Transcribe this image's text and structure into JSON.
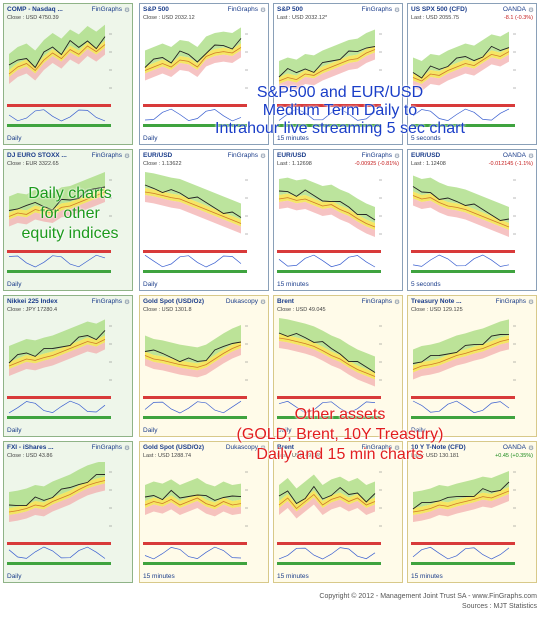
{
  "panels": [
    {
      "name": "COMP - Nasdaq ...",
      "provider": "FinGraphs",
      "quote": "Close : USD 4750.39",
      "change": "",
      "dir": "",
      "footer": "Daily",
      "bg": "green",
      "trend": "up"
    },
    {
      "name": "S&P 500",
      "provider": "FinGraphs",
      "quote": "Close : USD 2032.12",
      "change": "",
      "dir": "",
      "footer": "Daily",
      "bg": "blue",
      "trend": "up"
    },
    {
      "name": "S&P 500",
      "provider": "FinGraphs",
      "quote": "Last : USD 2032.12*",
      "change": "",
      "dir": "",
      "footer": "15 minutes",
      "bg": "blue",
      "trend": "up"
    },
    {
      "name": "US SPX 500 (CFD)",
      "provider": "OANDA",
      "quote": "Last : USD 2055.75",
      "change": "-8.1 (-0.3%)",
      "dir": "down",
      "footer": "5 seconds",
      "bg": "blue",
      "trend": "up"
    },
    {
      "name": "DJ EURO STOXX ...",
      "provider": "FinGraphs",
      "quote": "Close : EUR 3322.65",
      "change": "",
      "dir": "",
      "footer": "Daily",
      "bg": "green",
      "trend": "up"
    },
    {
      "name": "EUR/USD",
      "provider": "FinGraphs",
      "quote": "Close : 1.13622",
      "change": "",
      "dir": "",
      "footer": "Daily",
      "bg": "blue",
      "trend": "down"
    },
    {
      "name": "EUR/USD",
      "provider": "FinGraphs",
      "quote": "Last : 1.12698",
      "change": "-0.00925 (-0.81%)",
      "dir": "down",
      "footer": "15 minutes",
      "bg": "blue",
      "trend": "down"
    },
    {
      "name": "EUR/USD",
      "provider": "OANDA",
      "quote": "Last : 1.12408",
      "change": "-0.012145 (-1.1%)",
      "dir": "down",
      "footer": "5 seconds",
      "bg": "blue",
      "trend": "down"
    },
    {
      "name": "Nikkei 225 Index",
      "provider": "FinGraphs",
      "quote": "Close : JPY 17280.4",
      "change": "",
      "dir": "",
      "footer": "Daily",
      "bg": "green",
      "trend": "up"
    },
    {
      "name": "Gold Spot (USD/Oz)",
      "provider": "Dukascopy",
      "quote": "Close : USD 1301.8",
      "change": "",
      "dir": "",
      "footer": "Daily",
      "bg": "yellow",
      "trend": "up"
    },
    {
      "name": "Brent",
      "provider": "FinGraphs",
      "quote": "Close : USD 49.045",
      "change": "",
      "dir": "",
      "footer": "Daily",
      "bg": "yellow",
      "trend": "down"
    },
    {
      "name": "Treasury Note ...",
      "provider": "FinGraphs",
      "quote": "Close : USD 129.125",
      "change": "",
      "dir": "",
      "footer": "Daily",
      "bg": "yellow",
      "trend": "up"
    },
    {
      "name": "FXI - iShares ...",
      "provider": "FinGraphs",
      "quote": "Close : USD 43.86",
      "change": "",
      "dir": "",
      "footer": "Daily",
      "bg": "green",
      "trend": "up"
    },
    {
      "name": "Gold Spot (USD/Oz)",
      "provider": "Dukascopy",
      "quote": "Last : USD 1288.74",
      "change": "",
      "dir": "",
      "footer": "15 minutes",
      "bg": "yellow",
      "trend": "flat"
    },
    {
      "name": "Brent",
      "provider": "FinGraphs",
      "quote": "Last : USD 49.045",
      "change": "",
      "dir": "",
      "footer": "15 minutes",
      "bg": "yellow",
      "trend": "flat"
    },
    {
      "name": "10 Y T-Note (CFD)",
      "provider": "OANDA",
      "quote": "Last : USD 130.181",
      "change": "+0.45 (+0.35%)",
      "dir": "up",
      "footer": "15 minutes",
      "bg": "yellow",
      "trend": "up"
    }
  ],
  "overlays": {
    "sp_lines": [
      "S&P500 and EUR/USD",
      "Medium Term Daily to",
      "Intrahour live streaming 5 sec chart"
    ],
    "daily_lines": [
      "Daily charts",
      "for other",
      "equity indices"
    ],
    "assets_lines": [
      "Other assets",
      "(GOLD, Brent, 10Y Treasury)",
      "Daily and 15 min charts"
    ]
  },
  "copyright": {
    "line1": "Copyright © 2012 - Management Joint Trust SA - www.FinGraphs.com",
    "line2": "Sources : MJT Statistics"
  },
  "colors": {
    "band_upper": "#a6db7c",
    "band_mid": "#f3e24a",
    "band_lower": "#f2a9a9",
    "price": "#222222",
    "overbought": "#d83a3a",
    "oversold": "#3fa33f",
    "accent_blue": "#1a3ec8",
    "accent_green": "#1c9a1c",
    "accent_red": "#e21e1e"
  },
  "chart_data": [
    {
      "type": "line",
      "title": "COMP - Nasdaq ...",
      "series": [
        {
          "values": [
            0.4,
            0.5,
            0.55,
            0.45,
            0.6,
            0.7,
            0.62,
            0.75,
            0.68,
            0.8,
            0.72,
            0.82
          ]
        }
      ]
    },
    {
      "type": "line",
      "title": "S&P 500",
      "series": [
        {
          "values": [
            0.45,
            0.5,
            0.55,
            0.5,
            0.6,
            0.58,
            0.5,
            0.65,
            0.7,
            0.72,
            0.7,
            0.78
          ]
        }
      ]
    },
    {
      "type": "line",
      "title": "S&P 500",
      "series": [
        {
          "values": [
            0.3,
            0.35,
            0.32,
            0.4,
            0.38,
            0.45,
            0.5,
            0.55,
            0.6,
            0.62,
            0.7,
            0.75
          ]
        }
      ]
    },
    {
      "type": "line",
      "title": "US SPX 500 (CFD)",
      "series": [
        {
          "values": [
            0.35,
            0.3,
            0.4,
            0.38,
            0.45,
            0.5,
            0.55,
            0.52,
            0.6,
            0.68,
            0.65,
            0.72
          ]
        }
      ]
    },
    {
      "type": "line",
      "title": "DJ EURO STOXX ...",
      "series": [
        {
          "values": [
            0.45,
            0.5,
            0.48,
            0.55,
            0.52,
            0.5,
            0.58,
            0.6,
            0.65,
            0.7,
            0.75,
            0.8
          ]
        }
      ]
    },
    {
      "type": "line",
      "title": "EUR/USD",
      "series": [
        {
          "values": [
            0.8,
            0.78,
            0.75,
            0.72,
            0.7,
            0.65,
            0.6,
            0.55,
            0.5,
            0.45,
            0.4,
            0.35
          ]
        }
      ]
    },
    {
      "type": "line",
      "title": "EUR/USD",
      "series": [
        {
          "values": [
            0.7,
            0.72,
            0.68,
            0.7,
            0.65,
            0.6,
            0.62,
            0.55,
            0.5,
            0.42,
            0.35,
            0.3
          ]
        }
      ]
    },
    {
      "type": "line",
      "title": "EUR/USD",
      "series": [
        {
          "values": [
            0.75,
            0.7,
            0.72,
            0.65,
            0.6,
            0.58,
            0.55,
            0.5,
            0.45,
            0.4,
            0.35,
            0.3
          ]
        }
      ]
    },
    {
      "type": "line",
      "title": "Nikkei 225 Index",
      "series": [
        {
          "values": [
            0.4,
            0.45,
            0.5,
            0.48,
            0.52,
            0.55,
            0.6,
            0.65,
            0.7,
            0.75,
            0.72,
            0.78
          ]
        }
      ]
    },
    {
      "type": "line",
      "title": "Gold Spot (USD/Oz)",
      "series": [
        {
          "values": [
            0.55,
            0.5,
            0.48,
            0.45,
            0.42,
            0.4,
            0.38,
            0.42,
            0.5,
            0.58,
            0.65,
            0.7
          ]
        }
      ]
    },
    {
      "type": "line",
      "title": "Brent",
      "series": [
        {
          "values": [
            0.8,
            0.78,
            0.75,
            0.72,
            0.68,
            0.62,
            0.55,
            0.5,
            0.42,
            0.35,
            0.3,
            0.25
          ]
        }
      ]
    },
    {
      "type": "line",
      "title": "Treasury Note ...",
      "series": [
        {
          "values": [
            0.35,
            0.4,
            0.42,
            0.45,
            0.5,
            0.55,
            0.58,
            0.62,
            0.65,
            0.7,
            0.75,
            0.78
          ]
        }
      ]
    },
    {
      "type": "line",
      "title": "FXI - iShares ...",
      "series": [
        {
          "values": [
            0.4,
            0.42,
            0.45,
            0.5,
            0.48,
            0.55,
            0.6,
            0.65,
            0.72,
            0.78,
            0.82,
            0.85
          ]
        }
      ]
    },
    {
      "type": "line",
      "title": "Gold Spot (USD/Oz)",
      "series": [
        {
          "values": [
            0.5,
            0.55,
            0.52,
            0.58,
            0.5,
            0.55,
            0.6,
            0.52,
            0.48,
            0.55,
            0.5,
            0.52
          ]
        }
      ]
    },
    {
      "type": "line",
      "title": "Brent",
      "series": [
        {
          "values": [
            0.5,
            0.6,
            0.45,
            0.55,
            0.65,
            0.5,
            0.58,
            0.62,
            0.55,
            0.6,
            0.5,
            0.55
          ]
        }
      ]
    },
    {
      "type": "line",
      "title": "10 Y T-Note (CFD)",
      "series": [
        {
          "values": [
            0.4,
            0.42,
            0.45,
            0.5,
            0.48,
            0.52,
            0.55,
            0.58,
            0.62,
            0.6,
            0.65,
            0.7
          ]
        }
      ]
    }
  ]
}
